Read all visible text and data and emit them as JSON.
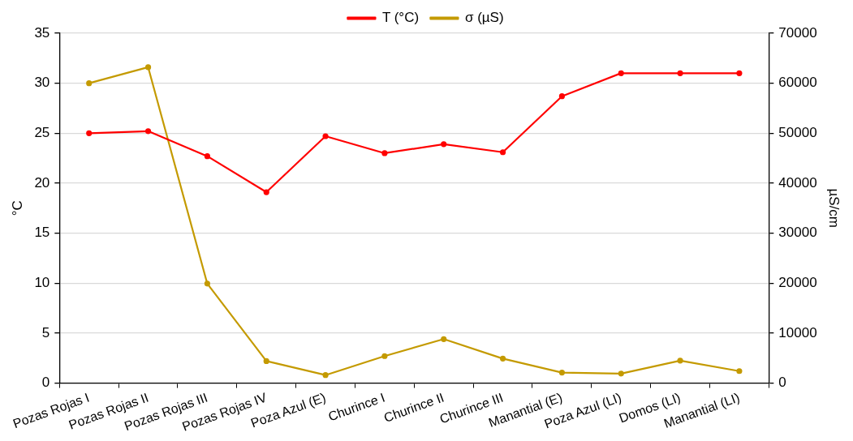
{
  "chart_data": {
    "type": "line",
    "ylabel": "°C",
    "y2label": "µS/cm",
    "categories": [
      "Pozas Rojas I",
      "Pozas Rojas II",
      "Pozas Rojas III",
      "Pozas Rojas IV",
      "Poza Azul (E)",
      "Churince I",
      "Churince II",
      "Churince III",
      "Manantial (E)",
      "Poza Azul (LI)",
      "Domos (LI)",
      "Manantial (LI)"
    ],
    "series": [
      {
        "name": "T (°C)",
        "color": "#ff0000",
        "values": [
          25.0,
          25.2,
          22.7,
          19.1,
          24.7,
          23.0,
          23.9,
          23.1,
          28.7,
          31.0,
          31.0,
          31.0
        ]
      },
      {
        "name": "σ (µS)",
        "color": "#c49a00",
        "axis": "y2",
        "values": [
          60000,
          63200,
          19900,
          4400,
          1600,
          5400,
          8800,
          4900,
          2100,
          1900,
          4500,
          2400
        ]
      }
    ],
    "ylim": [
      0,
      35
    ],
    "yticks": [
      0,
      5,
      10,
      15,
      20,
      25,
      30,
      35
    ],
    "y2lim": [
      0,
      70000
    ],
    "y2ticks": [
      0,
      10000,
      20000,
      30000,
      40000,
      50000,
      60000,
      70000
    ],
    "grid": "y",
    "legend": "top",
    "marker": "circle",
    "line_style": "solid"
  }
}
